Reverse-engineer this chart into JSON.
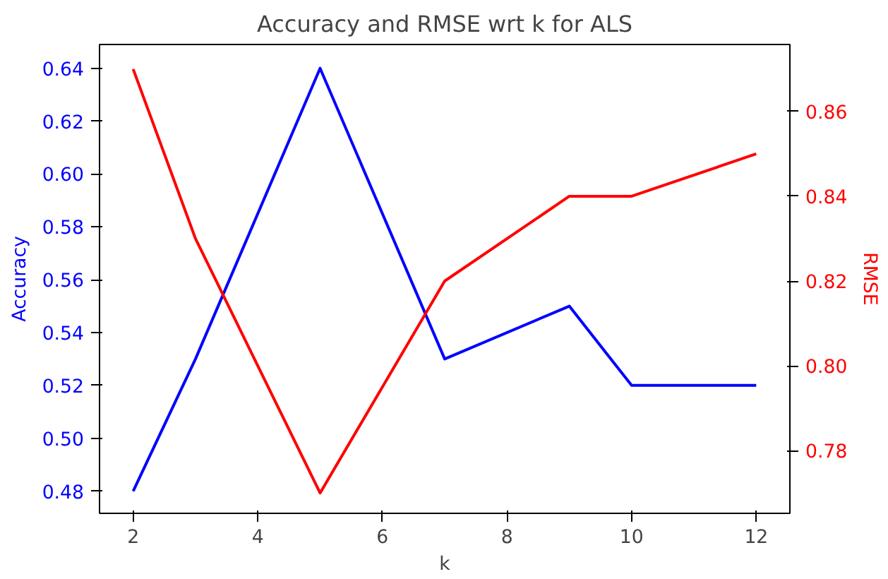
{
  "chart_data": {
    "type": "line",
    "title": "Accuracy and RMSE wrt k for ALS",
    "xlabel": "k",
    "ylabel": "Accuracy",
    "y2label": "RMSE",
    "x": [
      2,
      3,
      5,
      7,
      9,
      10,
      12
    ],
    "series": [
      {
        "color": "#0000ff",
        "values": [
          0.48,
          0.53,
          0.64,
          0.53,
          0.55,
          0.52,
          0.52
        ]
      },
      {
        "color": "#ff0000",
        "axis": "y2",
        "values": [
          0.87,
          0.83,
          0.77,
          0.82,
          0.84,
          0.84,
          0.85
        ]
      }
    ],
    "xlim": [
      1.46,
      12.54
    ],
    "xticks": [
      2,
      4,
      6,
      8,
      10,
      12
    ],
    "ylim": [
      0.4716,
      0.649
    ],
    "yticks": [
      {
        "value": 0.48,
        "label": "0.48"
      },
      {
        "value": 0.5,
        "label": "0.50"
      },
      {
        "value": 0.52,
        "label": "0.52"
      },
      {
        "value": 0.54,
        "label": "0.54"
      },
      {
        "value": 0.56,
        "label": "0.56"
      },
      {
        "value": 0.58,
        "label": "0.58"
      },
      {
        "value": 0.6,
        "label": "0.60"
      },
      {
        "value": 0.62,
        "label": "0.62"
      },
      {
        "value": 0.64,
        "label": "0.64"
      }
    ],
    "y2lim": [
      0.7652,
      0.8758
    ],
    "y2ticks": [
      0.78,
      {
        "value": 0.8,
        "label": "0.80"
      },
      0.82,
      0.84,
      0.86
    ],
    "grid": false,
    "marker": "none",
    "line_style": "solid"
  }
}
